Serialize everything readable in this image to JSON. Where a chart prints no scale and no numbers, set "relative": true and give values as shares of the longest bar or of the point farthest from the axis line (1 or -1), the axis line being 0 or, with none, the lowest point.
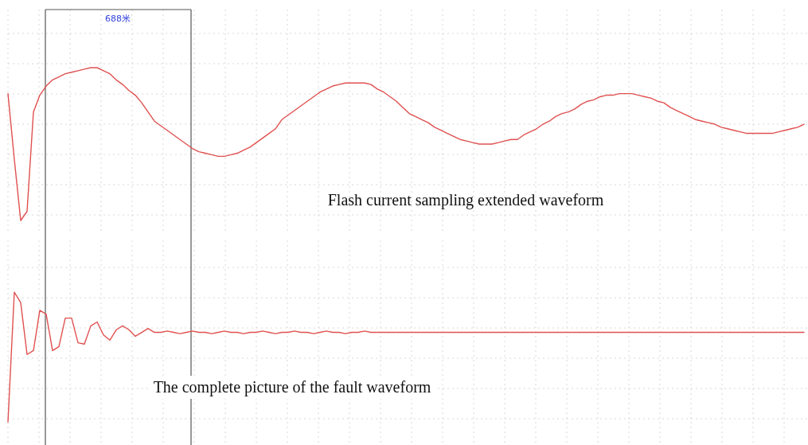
{
  "chart_data": [
    {
      "type": "line",
      "relative": true,
      "grid": true,
      "categories": [
        null,
        null,
        null,
        null,
        null,
        null,
        null,
        null,
        null,
        null,
        null,
        null,
        null,
        null,
        null,
        null,
        null,
        null,
        null,
        null,
        null,
        null,
        null,
        null,
        null,
        null,
        null,
        null,
        null,
        null,
        null,
        null,
        null,
        null,
        null,
        null,
        null,
        null,
        null,
        null,
        null,
        null,
        null,
        null,
        null,
        null,
        null,
        null,
        null,
        null,
        null,
        null,
        null,
        null,
        null,
        null,
        null,
        null,
        null,
        null,
        null,
        null,
        null,
        null,
        null,
        null,
        null,
        null,
        null,
        null,
        null,
        null,
        null,
        null,
        null,
        null,
        null,
        null,
        null,
        null,
        null,
        null,
        null,
        null,
        null,
        null,
        null,
        null,
        null,
        null,
        null,
        null,
        null,
        null,
        null,
        null,
        null,
        null,
        null,
        null,
        null,
        null,
        null,
        null,
        null,
        null,
        null,
        null,
        null,
        null,
        null,
        null,
        null,
        null,
        null,
        null,
        null,
        null,
        null,
        null,
        null,
        null,
        null,
        null,
        null,
        null
      ],
      "series": [
        {
          "color": "#e05050",
          "values": [
            0.83,
            0.4,
            0,
            0.06,
            0.71,
            0.82,
            0.88,
            0.92,
            0.94,
            0.96,
            0.97,
            0.98,
            0.99,
            1,
            1,
            0.98,
            0.96,
            0.92,
            0.89,
            0.85,
            0.82,
            0.77,
            0.71,
            0.65,
            0.62,
            0.59,
            0.56,
            0.53,
            0.5,
            0.47,
            0.45,
            0.44,
            0.43,
            0.42,
            0.42,
            0.43,
            0.44,
            0.46,
            0.48,
            0.51,
            0.54,
            0.57,
            0.6,
            0.66,
            0.69,
            0.72,
            0.75,
            0.78,
            0.81,
            0.84,
            0.86,
            0.88,
            0.89,
            0.9,
            0.9,
            0.9,
            0.9,
            0.89,
            0.86,
            0.84,
            0.81,
            0.78,
            0.74,
            0.7,
            0.68,
            0.66,
            0.64,
            0.61,
            0.59,
            0.57,
            0.55,
            0.53,
            0.52,
            0.51,
            0.5,
            0.5,
            0.5,
            0.51,
            0.52,
            0.53,
            0.53,
            0.56,
            0.58,
            0.6,
            0.63,
            0.65,
            0.68,
            0.7,
            0.71,
            0.73,
            0.76,
            0.78,
            0.79,
            0.81,
            0.82,
            0.82,
            0.83,
            0.83,
            0.83,
            0.82,
            0.81,
            0.8,
            0.78,
            0.77,
            0.74,
            0.72,
            0.7,
            0.68,
            0.66,
            0.65,
            0.64,
            0.63,
            0.61,
            0.6,
            0.59,
            0.58,
            0.57,
            0.57,
            0.57,
            0.57,
            0.57,
            0.58,
            0.59,
            0.6,
            0.61,
            0.63
          ]
        }
      ],
      "annotations": [
        "Flash current sampling extended waveform",
        "688米"
      ]
    },
    {
      "type": "line",
      "relative": true,
      "grid": true,
      "categories": [
        null,
        null,
        null,
        null,
        null,
        null,
        null,
        null,
        null,
        null,
        null,
        null,
        null,
        null,
        null,
        null,
        null,
        null,
        null,
        null,
        null,
        null,
        null,
        null,
        null,
        null,
        null,
        null,
        null,
        null,
        null,
        null,
        null,
        null,
        null,
        null,
        null,
        null,
        null,
        null,
        null,
        null,
        null,
        null,
        null,
        null,
        null,
        null,
        null,
        null,
        null,
        null,
        null,
        null,
        null,
        null,
        null,
        null,
        null,
        null,
        null,
        null,
        null,
        null,
        null,
        null,
        null,
        null,
        null,
        null,
        null,
        null,
        null,
        null,
        null,
        null,
        null,
        null,
        null,
        null,
        null,
        null,
        null,
        null,
        null,
        null,
        null,
        null,
        null,
        null,
        null,
        null,
        null,
        null,
        null,
        null,
        null,
        null,
        null,
        null,
        null,
        null,
        null,
        null,
        null,
        null,
        null,
        null,
        null,
        null,
        null,
        null,
        null,
        null,
        null,
        null,
        null,
        null,
        null,
        null,
        null,
        null,
        null,
        null,
        null,
        null
      ],
      "series": [
        {
          "color": "#e05050",
          "values": [
            0,
            1,
            0.92,
            0.52,
            0.55,
            0.86,
            0.83,
            0.55,
            0.58,
            0.8,
            0.8,
            0.61,
            0.6,
            0.74,
            0.77,
            0.67,
            0.63,
            0.71,
            0.74,
            0.71,
            0.66,
            0.69,
            0.72,
            0.69,
            0.69,
            0.7,
            0.69,
            0.68,
            0.69,
            0.7,
            0.69,
            0.69,
            0.68,
            0.69,
            0.7,
            0.69,
            0.69,
            0.68,
            0.69,
            0.69,
            0.7,
            0.69,
            0.68,
            0.69,
            0.69,
            0.7,
            0.69,
            0.69,
            0.68,
            0.69,
            0.7,
            0.69,
            0.69,
            0.68,
            0.69,
            0.69,
            0.7,
            0.69,
            0.69,
            0.69,
            0.69,
            0.69,
            0.69,
            0.69,
            0.69,
            0.69,
            0.69,
            0.69,
            0.69,
            0.69,
            0.69,
            0.69,
            0.69,
            0.69,
            0.69,
            0.69,
            0.69,
            0.69,
            0.69,
            0.69,
            0.69,
            0.69,
            0.69,
            0.69,
            0.69,
            0.69,
            0.69,
            0.69,
            0.69,
            0.69,
            0.69,
            0.69,
            0.69,
            0.69,
            0.69,
            0.69,
            0.69,
            0.69,
            0.69,
            0.69,
            0.69,
            0.69,
            0.69,
            0.69,
            0.69,
            0.69,
            0.69,
            0.69,
            0.69,
            0.69,
            0.69,
            0.69,
            0.69,
            0.69,
            0.69,
            0.69,
            0.69,
            0.69,
            0.69,
            0.69,
            0.69,
            0.69,
            0.69,
            0.69,
            0.69,
            0.69
          ]
        }
      ],
      "annotations": [
        "The complete picture of the fault waveform"
      ]
    }
  ]
}
